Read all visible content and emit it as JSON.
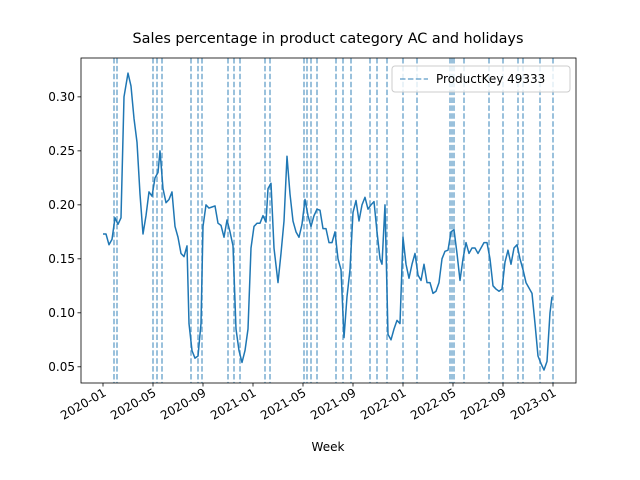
{
  "chart_data": {
    "type": "line",
    "title": "Sales percentage in product category AC and holidays",
    "xlabel": "Week",
    "xlim": [
      -1.76,
      37.84
    ],
    "xticks": [
      {
        "value": 0,
        "label": "2020-01"
      },
      {
        "value": 4,
        "label": "2020-05"
      },
      {
        "value": 8,
        "label": "2020-09"
      },
      {
        "value": 12,
        "label": "2021-01"
      },
      {
        "value": 16,
        "label": "2021-05"
      },
      {
        "value": 20,
        "label": "2021-09"
      },
      {
        "value": 24,
        "label": "2022-01"
      },
      {
        "value": 28,
        "label": "2022-05"
      },
      {
        "value": 32,
        "label": "2022-09"
      },
      {
        "value": 36,
        "label": "2023-01"
      }
    ],
    "ylim": [
      0.035,
      0.336
    ],
    "yticks": [
      0.05,
      {
        "value": 0.1,
        "label": "0.10"
      },
      0.15,
      {
        "value": 0.2,
        "label": "0.20"
      },
      0.25,
      {
        "value": 0.3,
        "label": "0.30"
      }
    ],
    "legend": "upper right",
    "x": [
      0,
      0.24,
      0.48,
      0.72,
      0.96,
      1.2,
      1.44,
      1.68,
      2.0,
      2.24,
      2.48,
      2.72,
      2.96,
      3.2,
      3.44,
      3.68,
      3.92,
      4.16,
      4.4,
      4.56,
      4.8,
      5.04,
      5.28,
      5.52,
      5.76,
      6.0,
      6.24,
      6.48,
      6.72,
      6.88,
      7.12,
      7.36,
      7.6,
      7.84,
      8.0,
      8.24,
      8.48,
      8.72,
      8.96,
      9.2,
      9.44,
      9.68,
      9.92,
      10.16,
      10.4,
      10.64,
      10.88,
      11.12,
      11.36,
      11.6,
      11.84,
      12.08,
      12.32,
      12.56,
      12.8,
      13.04,
      13.2,
      13.44,
      13.68,
      14.0,
      14.24,
      14.48,
      14.72,
      14.96,
      15.2,
      15.44,
      15.68,
      15.92,
      16.16,
      16.4,
      16.64,
      16.88,
      17.12,
      17.36,
      17.6,
      17.84,
      18.08,
      18.32,
      18.56,
      18.8,
      19.04,
      19.28,
      19.52,
      19.76,
      20.0,
      20.24,
      20.48,
      20.72,
      20.96,
      21.2,
      21.44,
      21.68,
      21.92,
      22.16,
      22.32,
      22.56,
      22.8,
      23.04,
      23.28,
      23.52,
      23.76,
      24.0,
      24.24,
      24.48,
      24.72,
      24.96,
      25.2,
      25.44,
      25.68,
      25.92,
      26.16,
      26.4,
      26.64,
      26.88,
      27.12,
      27.36,
      27.6,
      27.84,
      28.08,
      28.32,
      28.56,
      28.8,
      29.04,
      29.28,
      29.52,
      29.76,
      30.0,
      30.24,
      30.48,
      30.72,
      30.96,
      31.2,
      31.44,
      31.68,
      31.92,
      32.16,
      32.4,
      32.64,
      32.88,
      33.12,
      33.36,
      33.6,
      33.84,
      34.08,
      34.32,
      34.56,
      34.8,
      35.04,
      35.28,
      35.52,
      35.76,
      35.92
    ],
    "series": [
      {
        "color": "#1f77b4",
        "values": [
          0.173,
          0.173,
          0.163,
          0.168,
          0.188,
          0.182,
          0.188,
          0.3,
          0.322,
          0.31,
          0.28,
          0.258,
          0.21,
          0.173,
          0.19,
          0.212,
          0.208,
          0.225,
          0.23,
          0.25,
          0.215,
          0.202,
          0.205,
          0.212,
          0.18,
          0.17,
          0.155,
          0.152,
          0.162,
          0.09,
          0.065,
          0.058,
          0.06,
          0.09,
          0.18,
          0.2,
          0.197,
          0.198,
          0.199,
          0.183,
          0.181,
          0.17,
          0.186,
          0.175,
          0.162,
          0.085,
          0.065,
          0.054,
          0.065,
          0.085,
          0.16,
          0.18,
          0.183,
          0.183,
          0.19,
          0.184,
          0.215,
          0.22,
          0.16,
          0.128,
          0.155,
          0.185,
          0.245,
          0.21,
          0.185,
          0.175,
          0.17,
          0.182,
          0.205,
          0.19,
          0.18,
          0.19,
          0.196,
          0.195,
          0.178,
          0.178,
          0.165,
          0.165,
          0.175,
          0.15,
          0.14,
          0.077,
          0.115,
          0.14,
          0.193,
          0.204,
          0.185,
          0.2,
          0.207,
          0.196,
          0.2,
          0.203,
          0.175,
          0.15,
          0.145,
          0.2,
          0.08,
          0.075,
          0.085,
          0.093,
          0.09,
          0.17,
          0.145,
          0.132,
          0.145,
          0.155,
          0.135,
          0.13,
          0.145,
          0.128,
          0.128,
          0.118,
          0.12,
          0.128,
          0.15,
          0.157,
          0.158,
          0.175,
          0.177,
          0.155,
          0.13,
          0.15,
          0.165,
          0.155,
          0.16,
          0.16,
          0.155,
          0.16,
          0.165,
          0.165,
          0.15,
          0.125,
          0.122,
          0.12,
          0.122,
          0.147,
          0.158,
          0.145,
          0.16,
          0.163,
          0.15,
          0.14,
          0.128,
          0.123,
          0.118,
          0.09,
          0.06,
          0.053,
          0.047,
          0.055,
          0.1,
          0.115
        ]
      }
    ],
    "vlines": {
      "name": "ProductKey 49333",
      "color": "#1f77b4",
      "x": [
        0.88,
        1.12,
        4.0,
        4.32,
        4.72,
        7.04,
        7.6,
        7.92,
        10.0,
        10.48,
        10.96,
        12.96,
        13.36,
        16.08,
        16.32,
        16.64,
        17.12,
        18.64,
        19.2,
        19.84,
        21.36,
        21.92,
        22.72,
        24.0,
        25.12,
        27.76,
        27.92,
        28.08,
        28.88,
        30.88,
        32.0,
        33.2,
        33.6,
        34.96,
        36.0
      ]
    }
  }
}
